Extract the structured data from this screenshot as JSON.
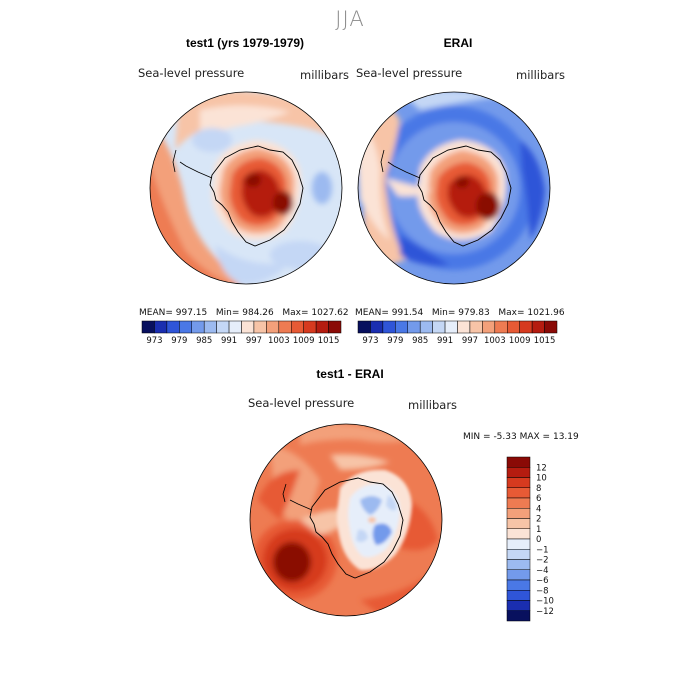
{
  "season": "JJA",
  "panels": [
    {
      "title": "test1 (yrs 1979-1979)",
      "variable_label": "Sea-level pressure",
      "units": "millibars",
      "stats": {
        "mean_label": "MEAN=",
        "mean": "997.15",
        "min_label": "Min=",
        "min": "984.26",
        "max_label": "Max=",
        "max": "1027.62"
      }
    },
    {
      "title": "ERAI",
      "variable_label": "Sea-level pressure",
      "units": "millibars",
      "stats": {
        "mean_label": "MEAN=",
        "mean": "991.54",
        "min_label": "Min=",
        "min": "979.83",
        "max_label": "Max=",
        "max": "1021.96"
      }
    }
  ],
  "diff_panel": {
    "title": "test1 - ERAI",
    "variable_label": "Sea-level pressure",
    "units": "millibars",
    "min_label": "MIN =",
    "min": "-5.33",
    "max_label": "MAX =",
    "max": "13.19"
  },
  "chart_data": [
    {
      "type": "heatmap",
      "projection": "south-polar-stereographic",
      "title": "test1 (yrs 1979-1979)",
      "variable": "Sea-level pressure",
      "units": "millibars",
      "colorbar_ticks": [
        "973",
        "979",
        "985",
        "991",
        "997",
        "1003",
        "1009",
        "1015"
      ],
      "colorbar_levels": 16,
      "stats": {
        "mean": 997.15,
        "min": 984.26,
        "max": 1027.62
      },
      "colorbar_colors": [
        "#08105e",
        "#1a2eb0",
        "#2f55d8",
        "#4a78e6",
        "#739aeb",
        "#9cbaf0",
        "#c4d7f5",
        "#e6eefa",
        "#fbe3d6",
        "#f7c4a7",
        "#f3a07a",
        "#ee7b52",
        "#e75a35",
        "#d63a1f",
        "#b51c10",
        "#8a0a06"
      ]
    },
    {
      "type": "heatmap",
      "projection": "south-polar-stereographic",
      "title": "ERAI",
      "variable": "Sea-level pressure",
      "units": "millibars",
      "colorbar_ticks": [
        "973",
        "979",
        "985",
        "991",
        "997",
        "1003",
        "1009",
        "1015"
      ],
      "colorbar_levels": 16,
      "stats": {
        "mean": 991.54,
        "min": 979.83,
        "max": 1021.96
      },
      "colorbar_colors": [
        "#08105e",
        "#1a2eb0",
        "#2f55d8",
        "#4a78e6",
        "#739aeb",
        "#9cbaf0",
        "#c4d7f5",
        "#e6eefa",
        "#fbe3d6",
        "#f7c4a7",
        "#f3a07a",
        "#ee7b52",
        "#e75a35",
        "#d63a1f",
        "#b51c10",
        "#8a0a06"
      ]
    },
    {
      "type": "heatmap",
      "projection": "south-polar-stereographic",
      "title": "test1 - ERAI",
      "variable": "Sea-level pressure",
      "units": "millibars",
      "colorbar_ticks": [
        "12",
        "10",
        "8",
        "6",
        "4",
        "2",
        "1",
        "0",
        "−1",
        "−2",
        "−4",
        "−6",
        "−8",
        "−10",
        "−12"
      ],
      "colorbar_colors": [
        "#8a0a06",
        "#b51c10",
        "#d63a1f",
        "#e75a35",
        "#ee7b52",
        "#f3a07a",
        "#f7c4a7",
        "#fbe3d6",
        "#e6eefa",
        "#c4d7f5",
        "#9cbaf0",
        "#739aeb",
        "#4a78e6",
        "#2f55d8",
        "#1a2eb0",
        "#08105e"
      ],
      "min": -5.33,
      "max": 13.19
    }
  ]
}
